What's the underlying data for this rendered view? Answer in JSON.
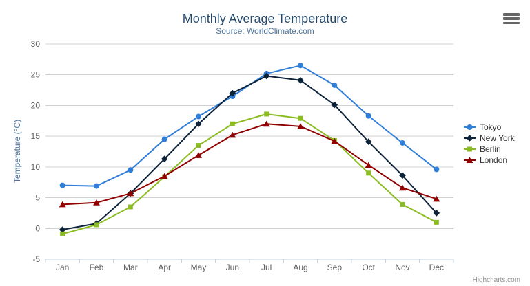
{
  "chart_data": {
    "type": "line",
    "title": "Monthly Average Temperature",
    "subtitle": "Source: WorldClimate.com",
    "categories": [
      "Jan",
      "Feb",
      "Mar",
      "Apr",
      "May",
      "Jun",
      "Jul",
      "Aug",
      "Sep",
      "Oct",
      "Nov",
      "Dec"
    ],
    "xlabel": "",
    "ylabel": "Temperature (°C)",
    "ylim": [
      -5,
      30
    ],
    "ytick_step": 5,
    "ytick_labels": [
      "-5",
      "0",
      "5",
      "10",
      "15",
      "20",
      "25",
      "30"
    ],
    "grid": true,
    "legend_position": "right",
    "series": [
      {
        "name": "Tokyo",
        "color": "#2f7ed8",
        "marker": "circle",
        "values": [
          7.0,
          6.9,
          9.5,
          14.5,
          18.2,
          21.5,
          25.2,
          26.5,
          23.3,
          18.3,
          13.9,
          9.6
        ]
      },
      {
        "name": "New York",
        "color": "#0d233a",
        "marker": "diamond",
        "values": [
          -0.2,
          0.8,
          5.7,
          11.3,
          17.0,
          22.0,
          24.8,
          24.1,
          20.1,
          14.1,
          8.6,
          2.5
        ]
      },
      {
        "name": "Berlin",
        "color": "#8bbc21",
        "marker": "square",
        "values": [
          -0.9,
          0.6,
          3.5,
          8.4,
          13.5,
          17.0,
          18.6,
          17.9,
          14.3,
          9.0,
          3.9,
          1.0
        ]
      },
      {
        "name": "London",
        "color": "#910000",
        "marker": "triangle",
        "values": [
          3.9,
          4.2,
          5.7,
          8.5,
          11.9,
          15.2,
          17.0,
          16.6,
          14.2,
          10.3,
          6.6,
          4.8
        ]
      }
    ]
  },
  "credits": "Highcharts.com",
  "export_menu_icon": "hamburger-menu-icon",
  "colors": {
    "title": "#274b6d",
    "subtitle": "#4d759e",
    "axis_title": "#4d759e",
    "axis_labels": "#606060",
    "grid_line": "#d0d0d0",
    "axis_line": "#c0d0e0",
    "legend_text": "#333333",
    "credits_text": "#909090",
    "menu_icon": "#666666",
    "background": "#ffffff"
  }
}
